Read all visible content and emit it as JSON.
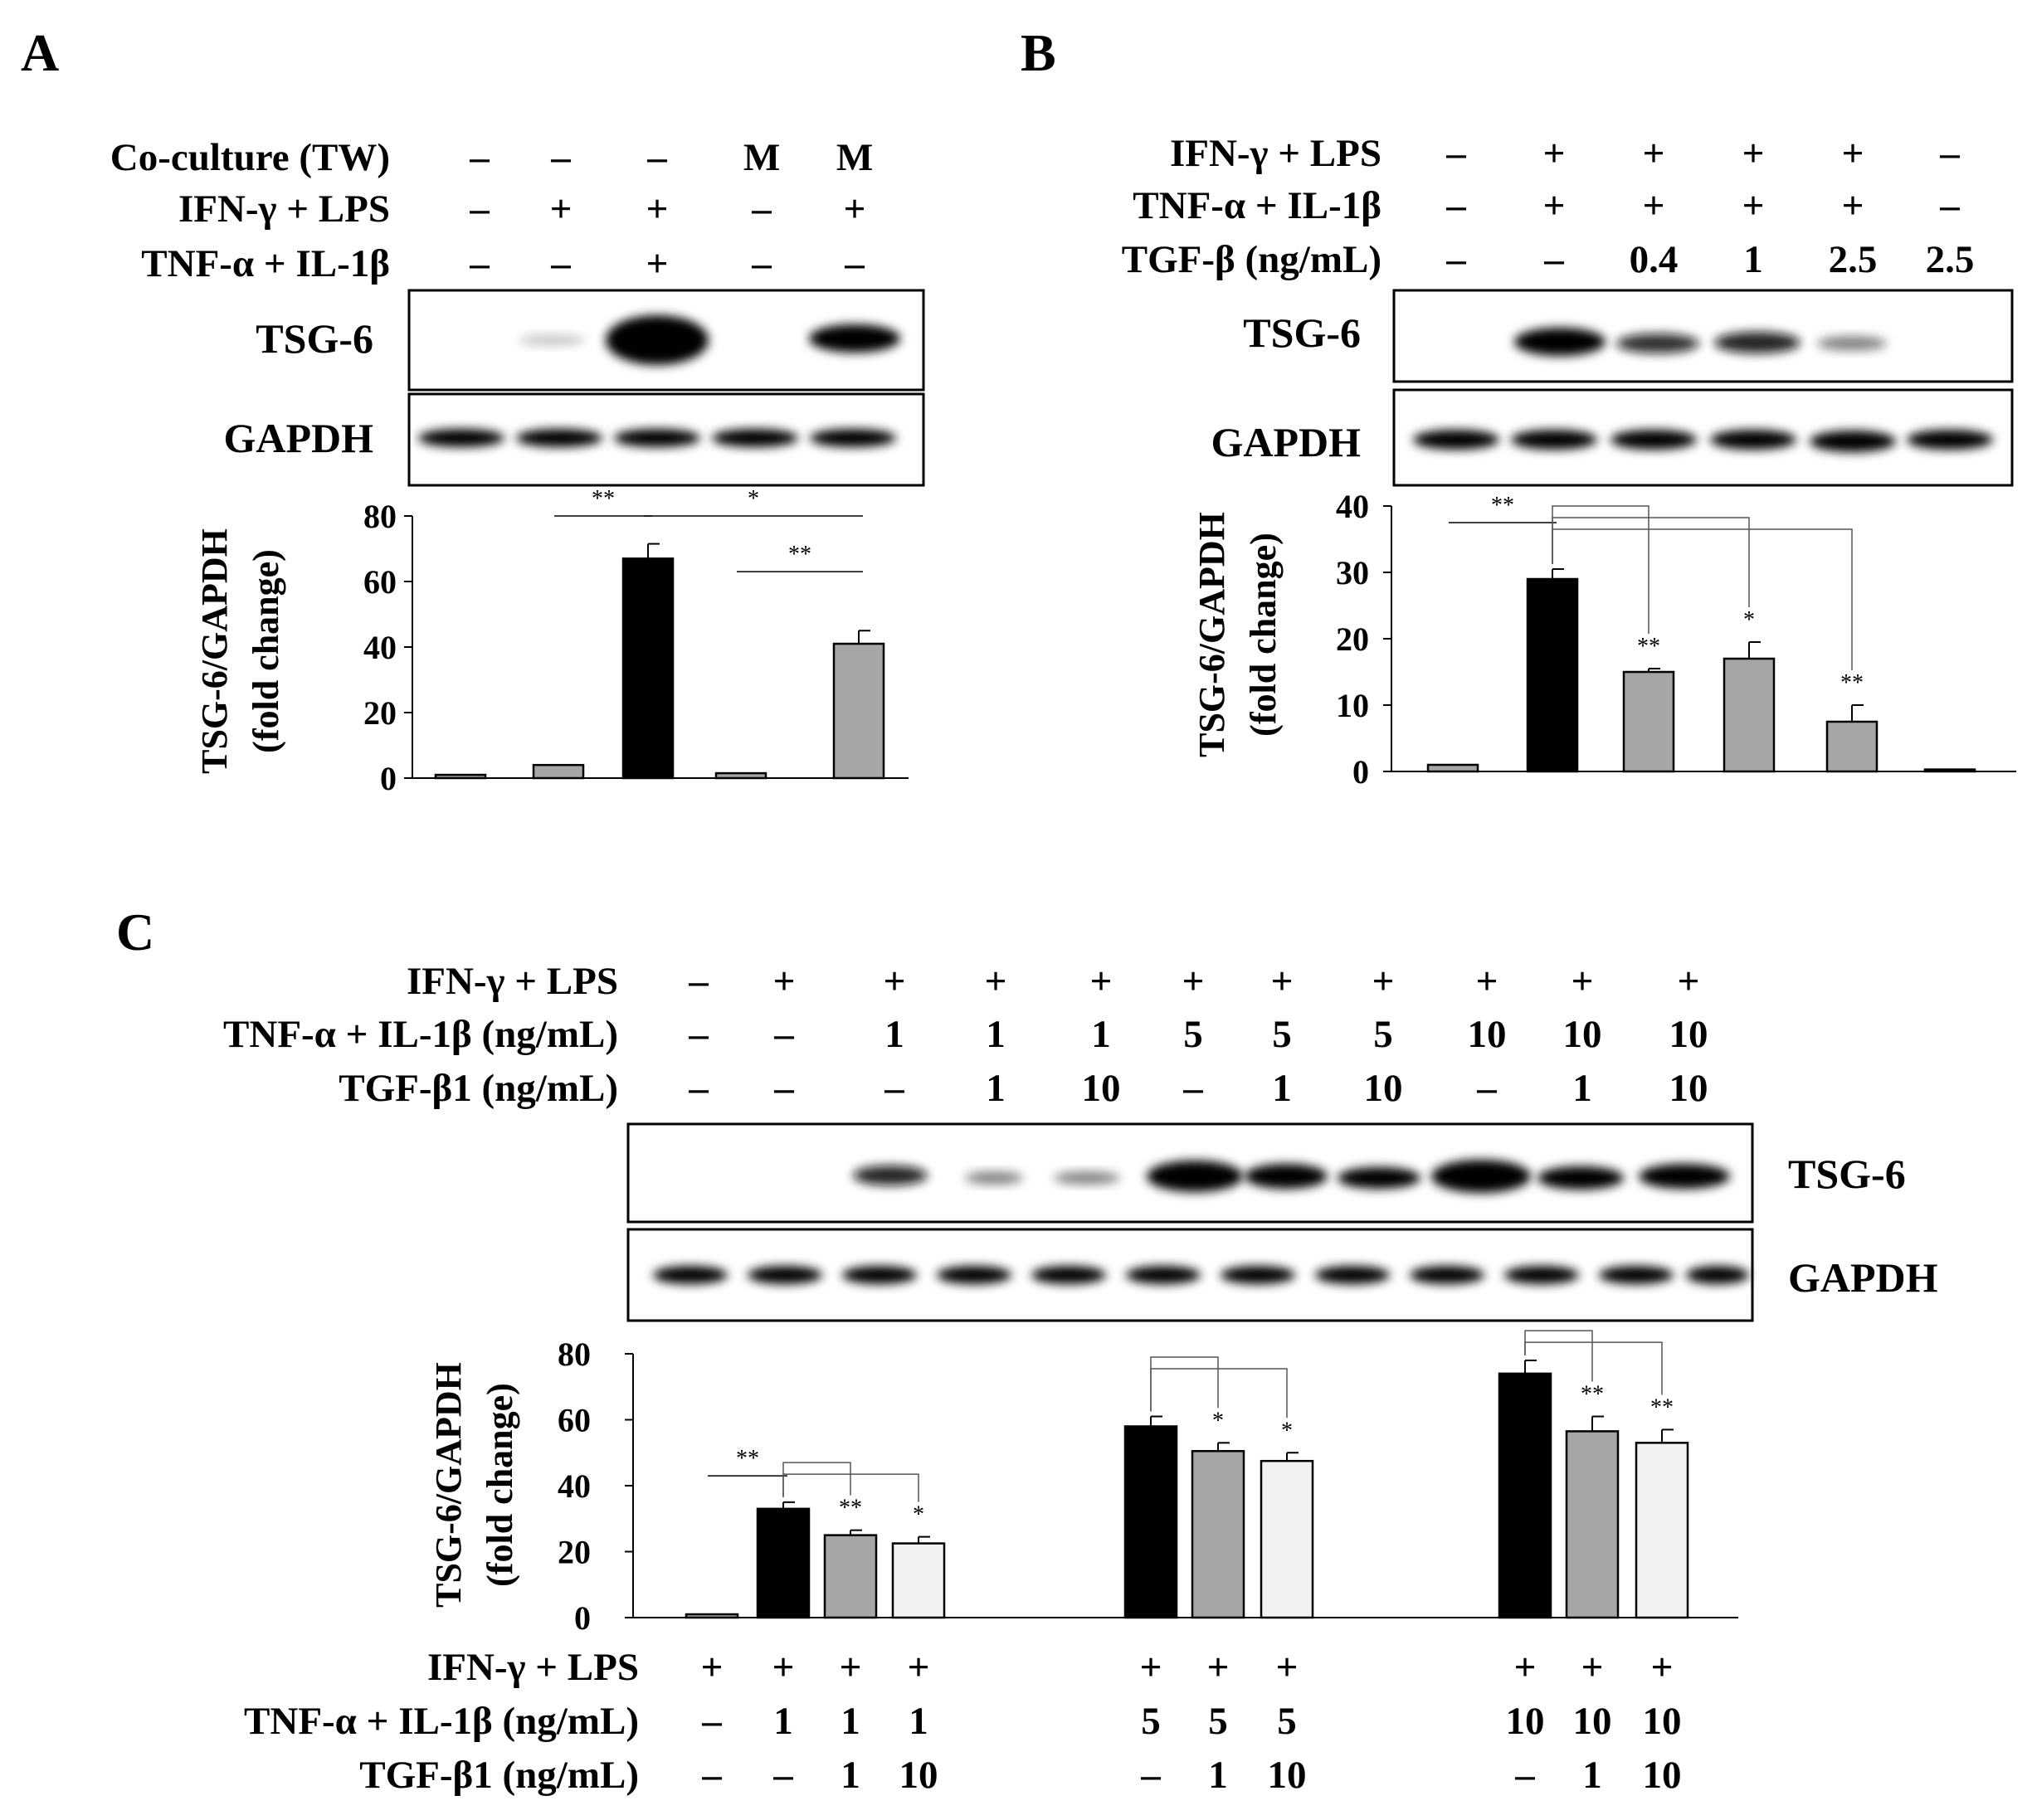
{
  "chart_data": [
    {
      "panel": "A",
      "type": "bar",
      "condition_rows": [
        {
          "label": "Co-culture (TW)",
          "values": [
            "–",
            "–",
            "–",
            "M",
            "M"
          ]
        },
        {
          "label": "IFN-γ + LPS",
          "values": [
            "–",
            "+",
            "+",
            "–",
            "+"
          ]
        },
        {
          "label": "TNF-α + IL-1β",
          "values": [
            "–",
            "–",
            "+",
            "–",
            "–"
          ]
        }
      ],
      "blots": [
        "TSG-6",
        "GAPDH"
      ],
      "ylabel": [
        "TSG-6/GAPDH",
        "(fold change)"
      ],
      "ylim": [
        0,
        80
      ],
      "yticks": [
        0,
        20,
        40,
        60,
        80
      ],
      "bars": [
        {
          "value": 1,
          "error": 0,
          "color": "#a6a6a6"
        },
        {
          "value": 4,
          "error": 0,
          "color": "#a6a6a6"
        },
        {
          "value": 67,
          "error": 4.5,
          "color": "#000000"
        },
        {
          "value": 1.5,
          "error": 0,
          "color": "#a6a6a6"
        },
        {
          "value": 41,
          "error": 4,
          "color": "#a6a6a6"
        }
      ],
      "significance": [
        {
          "text": "**",
          "from": 1,
          "to": 2,
          "style": "line",
          "level": 80
        },
        {
          "text": "*",
          "from": 2,
          "to": 4,
          "style": "line",
          "level": 80
        },
        {
          "text": "**",
          "from": 3,
          "to": 4,
          "style": "line",
          "level": 63
        }
      ]
    },
    {
      "panel": "B",
      "type": "bar",
      "condition_rows": [
        {
          "label": "IFN-γ + LPS",
          "values": [
            "–",
            "+",
            "+",
            "+",
            "+",
            "–"
          ]
        },
        {
          "label": "TNF-α + IL-1β",
          "values": [
            "–",
            "+",
            "+",
            "+",
            "+",
            "–"
          ]
        },
        {
          "label": "TGF-β (ng/mL)",
          "values": [
            "–",
            "–",
            "0.4",
            "1",
            "2.5",
            "2.5"
          ]
        }
      ],
      "blots": [
        "TSG-6",
        "GAPDH"
      ],
      "ylabel": [
        "TSG-6/GAPDH",
        "(fold change)"
      ],
      "ylim": [
        0,
        40
      ],
      "yticks": [
        0,
        10,
        20,
        30,
        40
      ],
      "bars": [
        {
          "value": 1,
          "error": 0,
          "color": "#a6a6a6"
        },
        {
          "value": 29,
          "error": 1.5,
          "color": "#000000"
        },
        {
          "value": 15,
          "error": 0.5,
          "color": "#a6a6a6",
          "star": "**"
        },
        {
          "value": 17,
          "error": 2.5,
          "color": "#a6a6a6",
          "star": "*"
        },
        {
          "value": 7.5,
          "error": 2.5,
          "color": "#a6a6a6",
          "star": "**"
        },
        {
          "value": 0.3,
          "error": 0,
          "color": "#a6a6a6"
        }
      ],
      "significance": [
        {
          "text": "**",
          "from": 0,
          "to": 1,
          "style": "line",
          "level": 37.5
        }
      ],
      "comparison_brackets": [
        {
          "ref": 1,
          "targets": [
            2,
            3,
            4
          ],
          "level": 40
        }
      ]
    },
    {
      "panel": "C",
      "type": "bar",
      "condition_rows": [
        {
          "label": "IFN-γ + LPS",
          "values": [
            "–",
            "+",
            "+",
            "+",
            "+",
            "+",
            "+",
            "+",
            "+",
            "+",
            "+"
          ]
        },
        {
          "label": "TNF-α + IL-1β (ng/mL)",
          "values": [
            "–",
            "–",
            "1",
            "1",
            "1",
            "5",
            "5",
            "5",
            "10",
            "10",
            "10"
          ]
        },
        {
          "label": "TGF-β1 (ng/mL)",
          "values": [
            "–",
            "–",
            "–",
            "1",
            "10",
            "–",
            "1",
            "10",
            "–",
            "1",
            "10"
          ]
        }
      ],
      "blots": [
        "TSG-6",
        "GAPDH"
      ],
      "ylabel": [
        "TSG-6/GAPDH",
        "(fold change)"
      ],
      "ylim": [
        0,
        80
      ],
      "yticks": [
        0,
        20,
        40,
        60,
        80
      ],
      "bars": [
        {
          "value": 1,
          "error": 0,
          "color": "#a6a6a6"
        },
        {
          "value": 33,
          "error": 2,
          "color": "#000000"
        },
        {
          "value": 25,
          "error": 1.5,
          "color": "#a6a6a6",
          "star": "**"
        },
        {
          "value": 22.5,
          "error": 2,
          "color": "#f2f2f2",
          "star": "*"
        },
        {
          "value": 58,
          "error": 3,
          "color": "#000000"
        },
        {
          "value": 50.5,
          "error": 2.5,
          "color": "#a6a6a6",
          "star": "*"
        },
        {
          "value": 47.5,
          "error": 2.5,
          "color": "#f2f2f2",
          "star": "*"
        },
        {
          "value": 74,
          "error": 4,
          "color": "#000000"
        },
        {
          "value": 56.5,
          "error": 4.5,
          "color": "#a6a6a6",
          "star": "**"
        },
        {
          "value": 53,
          "error": 4,
          "color": "#f2f2f2",
          "star": "**"
        }
      ],
      "significance": [
        {
          "text": "**",
          "from": 0,
          "to": 1,
          "style": "line",
          "level": 43
        }
      ],
      "comparison_brackets": [
        {
          "ref": 1,
          "targets": [
            2,
            3
          ],
          "level": 47
        },
        {
          "ref": 4,
          "targets": [
            5,
            6
          ],
          "level": 79
        },
        {
          "ref": 7,
          "targets": [
            8,
            9
          ],
          "level": 87
        }
      ],
      "bottom_condition_rows": [
        {
          "label": "IFN-γ + LPS",
          "values": [
            "+",
            "+",
            "+",
            "+",
            "+",
            "+",
            "+",
            "+",
            "+",
            "+"
          ]
        },
        {
          "label": "TNF-α + IL-1β (ng/mL)",
          "values": [
            "–",
            "1",
            "1",
            "1",
            "5",
            "5",
            "5",
            "10",
            "10",
            "10"
          ]
        },
        {
          "label": "TGF-β1 (ng/mL)",
          "values": [
            "–",
            "–",
            "1",
            "10",
            "–",
            "1",
            "10",
            "–",
            "1",
            "10"
          ]
        }
      ]
    }
  ],
  "panel_letters": [
    "A",
    "B",
    "C"
  ]
}
